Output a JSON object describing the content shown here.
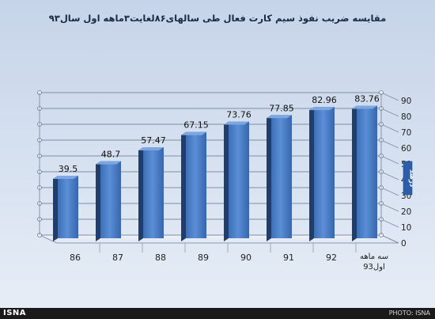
{
  "chart_data": {
    "type": "bar",
    "title": "مقایسه ضریب نفوذ سیم کارت فعال طی سالهای۸۶لغایت۳ماهه اول سال۹۳",
    "categories": [
      "86",
      "87",
      "88",
      "89",
      "90",
      "91",
      "92",
      "سه ماهه اول93"
    ],
    "values": [
      39.5,
      48.7,
      57.47,
      67.15,
      73.76,
      77.85,
      82.96,
      83.76
    ],
    "value_labels": [
      "39.5",
      "48.7",
      "57.47",
      "67.15",
      "73.76",
      "77.85",
      "82.96",
      "83.76"
    ],
    "ylabel": "درصد",
    "ylim": [
      0,
      90
    ],
    "yticks": [
      "0",
      "10",
      "20",
      "30",
      "40",
      "50",
      "60",
      "70",
      "80",
      "90"
    ],
    "grid": true,
    "axis_side": "right",
    "bar_color": "#4a7fc6"
  },
  "footer": {
    "agency": "ISNA",
    "credit": "PHOTO: ISNA"
  }
}
